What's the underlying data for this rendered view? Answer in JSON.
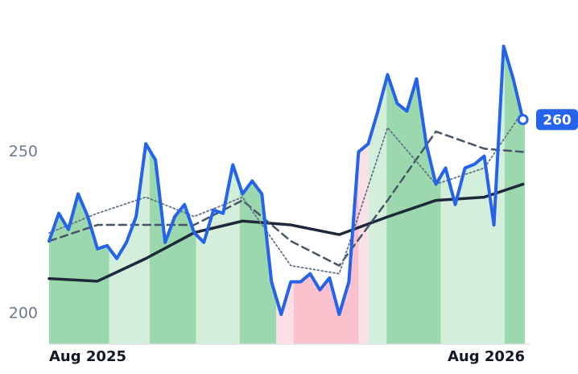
{
  "chart_data": {
    "type": "line",
    "xlim": [
      0,
      49.2
    ],
    "ylim": [
      190.5,
      297
    ],
    "xticks": [
      {
        "value": 0,
        "label": "Aug 2025"
      },
      {
        "value": 48,
        "label": "Aug 2026"
      }
    ],
    "yticks": [
      200,
      250
    ],
    "series": [
      {
        "color": "#2563eb",
        "style": "solid",
        "width": 4,
        "x": [
          0,
          1,
          2,
          3,
          4,
          5,
          6,
          7,
          8,
          9,
          10,
          11,
          12,
          13,
          14,
          15,
          16,
          17,
          18,
          19,
          20,
          21,
          22,
          23,
          24,
          25,
          26,
          27,
          28,
          29,
          30,
          31,
          32,
          33,
          34,
          35,
          36,
          37,
          38,
          39,
          40,
          41,
          42,
          43,
          44,
          45,
          46,
          47,
          48,
          49
        ],
        "values": [
          222.4,
          231,
          226,
          237,
          230,
          220,
          221,
          217,
          222,
          230,
          252.5,
          247.5,
          222,
          230,
          233.7,
          225,
          222,
          232,
          231,
          246,
          237,
          241,
          237,
          209.8,
          199.7,
          209.8,
          209.8,
          212.3,
          207.3,
          211,
          199.7,
          209.8,
          250,
          252.5,
          262.6,
          273.9,
          265,
          262.6,
          272.6,
          252.5,
          240,
          245,
          233.7,
          245,
          246.2,
          248.7,
          227.4,
          282.7,
          272.6,
          260
        ]
      },
      {
        "color": "#64748b",
        "style": "dotted",
        "width": 1.8,
        "x": [
          0,
          5,
          10,
          15,
          20,
          25,
          30,
          35,
          40,
          45,
          49
        ],
        "values": [
          224.9,
          231,
          236,
          230,
          236,
          214.8,
          212.3,
          257.5,
          240,
          245,
          262.6
        ]
      },
      {
        "color": "#475569",
        "style": "dashed",
        "width": 2.5,
        "x": [
          0,
          5,
          10,
          15,
          20,
          25,
          30,
          35,
          40,
          45,
          49
        ],
        "values": [
          222.4,
          227.4,
          227.4,
          227.4,
          235,
          222.4,
          214.8,
          235,
          256.3,
          251,
          250
        ]
      },
      {
        "color": "#1e293b",
        "style": "solid",
        "width": 3.5,
        "x": [
          0,
          5,
          10,
          15,
          20,
          25,
          30,
          35,
          40,
          45,
          49
        ],
        "values": [
          210.8,
          210,
          217,
          225,
          228.6,
          227.4,
          224.4,
          229.9,
          235,
          236,
          240
        ]
      }
    ],
    "shading": [
      {
        "from": 0,
        "to": 6.2,
        "color": "#9bd8ae"
      },
      {
        "from": 6.2,
        "to": 10.4,
        "color": "#d3eedb"
      },
      {
        "from": 10.4,
        "to": 15.2,
        "color": "#9bd8ae"
      },
      {
        "from": 15.2,
        "to": 19.7,
        "color": "#d3eedb"
      },
      {
        "from": 19.7,
        "to": 23.5,
        "color": "#9bd8ae"
      },
      {
        "from": 23.5,
        "to": 25.3,
        "color": "#fde0e5"
      },
      {
        "from": 25.3,
        "to": 32,
        "color": "#f9c2cc"
      },
      {
        "from": 32,
        "to": 33,
        "color": "#fde0e5"
      },
      {
        "from": 33,
        "to": 34.9,
        "color": "#d3eedb"
      },
      {
        "from": 34.9,
        "to": 40.5,
        "color": "#9bd8ae"
      },
      {
        "from": 40.5,
        "to": 47.1,
        "color": "#d3eedb"
      },
      {
        "from": 47.1,
        "to": 49.2,
        "color": "#9bd8ae"
      }
    ]
  }
}
